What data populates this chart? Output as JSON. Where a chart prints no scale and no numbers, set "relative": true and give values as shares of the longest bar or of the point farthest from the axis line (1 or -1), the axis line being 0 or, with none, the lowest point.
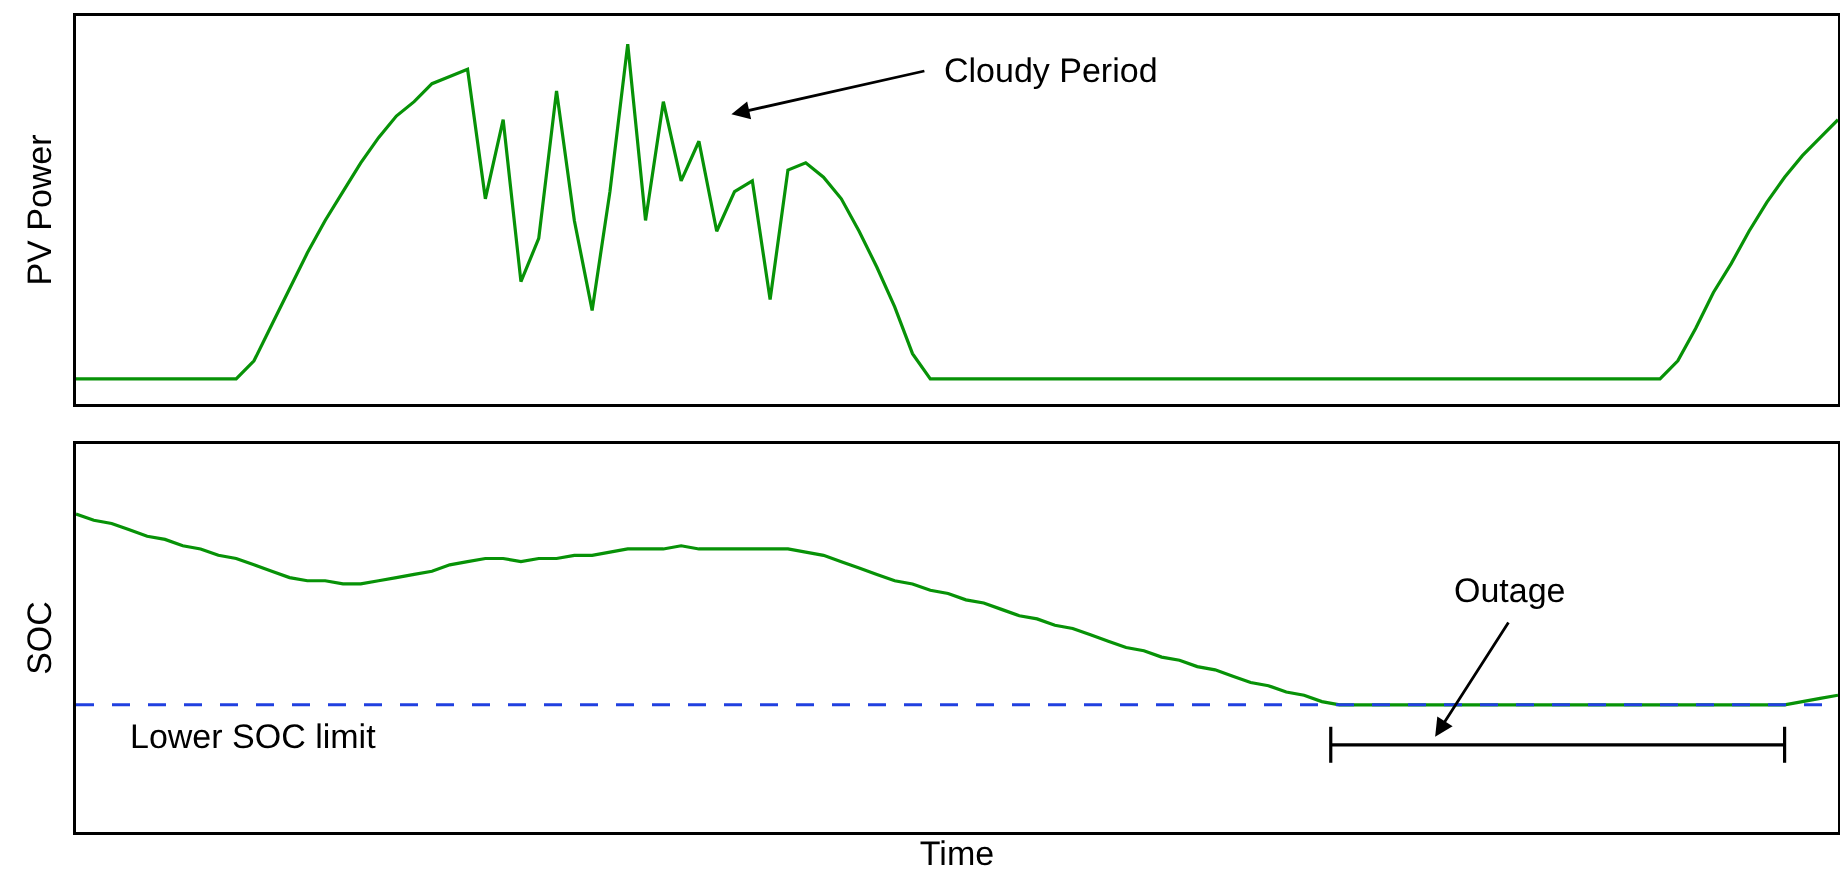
{
  "chart_data": [
    {
      "type": "line",
      "ylabel": "PV Power",
      "relative": true,
      "tick_labels": false,
      "marker": "none",
      "line_style": "solid",
      "categories": [
        null,
        null,
        null,
        null,
        null,
        null,
        null,
        null,
        null,
        null,
        null,
        null,
        null,
        null,
        null,
        null,
        null,
        null,
        null,
        null,
        null,
        null,
        null,
        null,
        null,
        null,
        null,
        null,
        null,
        null,
        null,
        null,
        null,
        null,
        null,
        null,
        null,
        null,
        null,
        null,
        null,
        null,
        null,
        null,
        null,
        null,
        null,
        null,
        null,
        null,
        null,
        null,
        null,
        null,
        null,
        null,
        null,
        null,
        null,
        null,
        null,
        null,
        null,
        null,
        null,
        null,
        null,
        null,
        null,
        null,
        null,
        null,
        null,
        null,
        null,
        null,
        null,
        null,
        null,
        null,
        null,
        null,
        null,
        null,
        null,
        null,
        null,
        null,
        null,
        null,
        null,
        null,
        null,
        null,
        null,
        null,
        null,
        null,
        null,
        null
      ],
      "series": [
        {
          "color": "#079207",
          "values": [
            0.07,
            0.07,
            0.07,
            0.07,
            0.07,
            0.07,
            0.07,
            0.07,
            0.07,
            0.07,
            0.12,
            0.22,
            0.32,
            0.42,
            0.51,
            0.59,
            0.67,
            0.74,
            0.8,
            0.84,
            0.89,
            0.91,
            0.93,
            0.57,
            0.79,
            0.34,
            0.46,
            0.87,
            0.51,
            0.26,
            0.59,
            1.0,
            0.51,
            0.84,
            0.62,
            0.73,
            0.48,
            0.59,
            0.62,
            0.29,
            0.65,
            0.67,
            0.63,
            0.57,
            0.48,
            0.38,
            0.27,
            0.14,
            0.07,
            0.07,
            0.07,
            0.07,
            0.07,
            0.07,
            0.07,
            0.07,
            0.07,
            0.07,
            0.07,
            0.07,
            0.07,
            0.07,
            0.07,
            0.07,
            0.07,
            0.07,
            0.07,
            0.07,
            0.07,
            0.07,
            0.07,
            0.07,
            0.07,
            0.07,
            0.07,
            0.07,
            0.07,
            0.07,
            0.07,
            0.07,
            0.07,
            0.07,
            0.07,
            0.07,
            0.07,
            0.07,
            0.07,
            0.07,
            0.07,
            0.07,
            0.12,
            0.21,
            0.31,
            0.39,
            0.48,
            0.56,
            0.63,
            0.69,
            0.74,
            0.79
          ]
        }
      ],
      "annotations": [
        "Cloudy Period"
      ]
    },
    {
      "type": "line",
      "ylabel": "SOC",
      "xlabel": "Time",
      "relative": true,
      "tick_labels": false,
      "marker": "none",
      "line_style": "solid",
      "categories": [
        null,
        null,
        null,
        null,
        null,
        null,
        null,
        null,
        null,
        null,
        null,
        null,
        null,
        null,
        null,
        null,
        null,
        null,
        null,
        null,
        null,
        null,
        null,
        null,
        null,
        null,
        null,
        null,
        null,
        null,
        null,
        null,
        null,
        null,
        null,
        null,
        null,
        null,
        null,
        null,
        null,
        null,
        null,
        null,
        null,
        null,
        null,
        null,
        null,
        null,
        null,
        null,
        null,
        null,
        null,
        null,
        null,
        null,
        null,
        null,
        null,
        null,
        null,
        null,
        null,
        null,
        null,
        null,
        null,
        null,
        null,
        null,
        null,
        null,
        null,
        null,
        null,
        null,
        null,
        null,
        null,
        null,
        null,
        null,
        null,
        null,
        null,
        null,
        null,
        null,
        null,
        null,
        null,
        null,
        null,
        null,
        null,
        null,
        null,
        null
      ],
      "series": [
        {
          "color": "#079207",
          "values": [
            1.0,
            0.98,
            0.97,
            0.95,
            0.93,
            0.92,
            0.9,
            0.89,
            0.87,
            0.86,
            0.84,
            0.82,
            0.8,
            0.79,
            0.79,
            0.78,
            0.78,
            0.79,
            0.8,
            0.81,
            0.82,
            0.84,
            0.85,
            0.86,
            0.86,
            0.85,
            0.86,
            0.86,
            0.87,
            0.87,
            0.88,
            0.89,
            0.89,
            0.89,
            0.9,
            0.89,
            0.89,
            0.89,
            0.89,
            0.89,
            0.89,
            0.88,
            0.87,
            0.85,
            0.83,
            0.81,
            0.79,
            0.78,
            0.76,
            0.75,
            0.73,
            0.72,
            0.7,
            0.68,
            0.67,
            0.65,
            0.64,
            0.62,
            0.6,
            0.58,
            0.57,
            0.55,
            0.54,
            0.52,
            0.51,
            0.49,
            0.47,
            0.46,
            0.44,
            0.43,
            0.41,
            0.4,
            0.4,
            0.4,
            0.4,
            0.4,
            0.4,
            0.4,
            0.4,
            0.4,
            0.4,
            0.4,
            0.4,
            0.4,
            0.4,
            0.4,
            0.4,
            0.4,
            0.4,
            0.4,
            0.4,
            0.4,
            0.4,
            0.4,
            0.4,
            0.4,
            0.4,
            0.41,
            0.42,
            0.43
          ]
        }
      ],
      "ref_lines": [
        {
          "axis": "y",
          "value": 0.4,
          "label": "Lower SOC limit",
          "color": "#2040e0",
          "line_style": "dashed"
        }
      ],
      "annotations": [
        "Outage"
      ]
    }
  ]
}
